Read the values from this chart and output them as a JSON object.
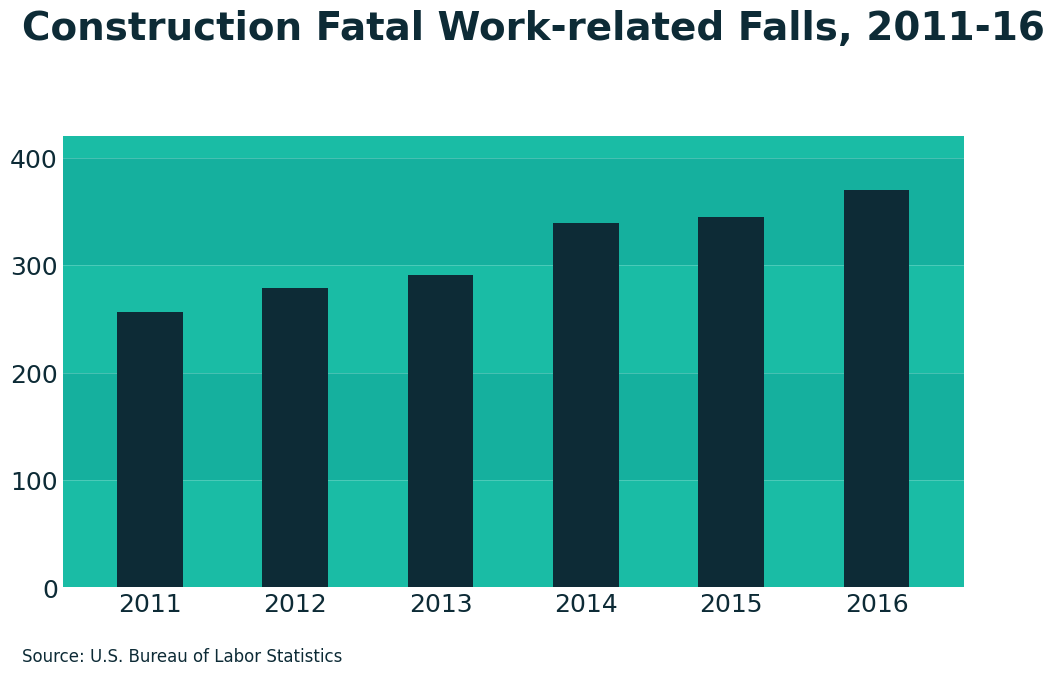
{
  "title": "Construction Fatal Work-related Falls, 2011-16",
  "categories": [
    "2011",
    "2012",
    "2013",
    "2014",
    "2015",
    "2016"
  ],
  "values": [
    256,
    279,
    291,
    339,
    345,
    370
  ],
  "bar_color": "#0d2b36",
  "background_color": "#1abca5",
  "plot_bg_color": "#1abca5",
  "fig_bg_color": "#ffffff",
  "yticks": [
    0,
    100,
    200,
    300,
    400
  ],
  "ylim": [
    0,
    420
  ],
  "title_fontsize": 28,
  "tick_fontsize": 18,
  "source_text": "Source: U.S. Bureau of Labor Statistics",
  "source_fontsize": 12,
  "title_color": "#0d2b36",
  "tick_color": "#0d2b36",
  "band_colors": [
    "#1abca5",
    "#17b09a",
    "#14a48f",
    "#11988a"
  ],
  "xlabel_color": "#0d2b36"
}
